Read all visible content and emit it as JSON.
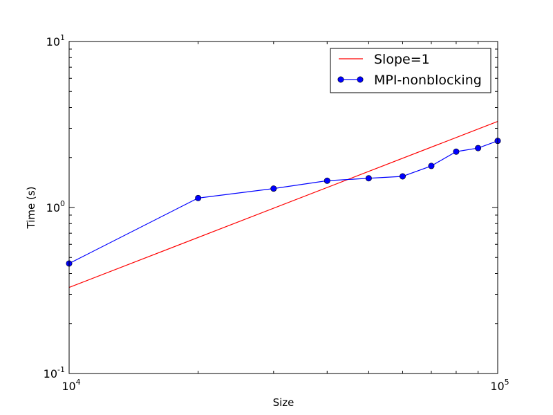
{
  "chart_data": {
    "type": "line",
    "xscale": "log",
    "yscale": "log",
    "xlim": [
      10000,
      100000
    ],
    "ylim": [
      0.1,
      10
    ],
    "xlabel": "Size",
    "ylabel": "Time (s)",
    "title": "",
    "grid": false,
    "legend_position": "top-right",
    "x_ticks": [
      {
        "base": "10",
        "exp": "4",
        "value": 10000
      },
      {
        "base": "10",
        "exp": "5",
        "value": 100000
      }
    ],
    "y_ticks": [
      {
        "base": "10",
        "exp": "-1",
        "value": 0.1
      },
      {
        "base": "10",
        "exp": "0",
        "value": 1
      },
      {
        "base": "10",
        "exp": "1",
        "value": 10
      }
    ],
    "series": [
      {
        "name": "Slope=1",
        "color": "#ff0000",
        "marker": "none",
        "x": [
          10000,
          100000
        ],
        "y": [
          0.33,
          3.3
        ]
      },
      {
        "name": "MPI-nonblocking",
        "color": "#0000ff",
        "marker": "circle",
        "x": [
          10000,
          20000,
          30000,
          40000,
          50000,
          60000,
          70000,
          80000,
          90000,
          100000
        ],
        "y": [
          0.46,
          1.14,
          1.3,
          1.45,
          1.5,
          1.54,
          1.78,
          2.17,
          2.28,
          2.52
        ]
      }
    ]
  }
}
